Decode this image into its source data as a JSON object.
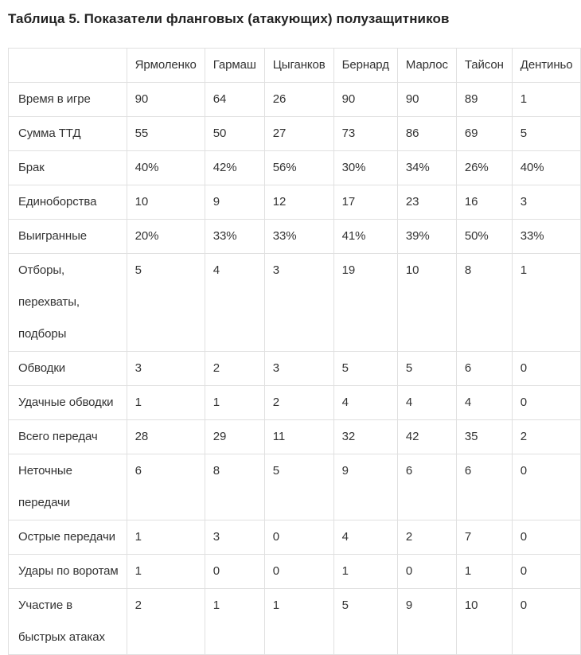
{
  "colors": {
    "text": "#333333",
    "border": "#e0e0e0",
    "title_text": "#222222",
    "background": "#ffffff"
  },
  "chart_data": {
    "type": "table",
    "title": "Таблица 5. Показатели фланговых (атакующих) полузащитников",
    "columns": [
      "",
      "Ярмоленко",
      "Гармаш",
      "Цыганков",
      "Бернард",
      "Марлос",
      "Тайсон",
      "Дентиньо"
    ],
    "rows": [
      {
        "label": "Время в игре",
        "values": [
          "90",
          "64",
          "26",
          "90",
          "90",
          "89",
          "1"
        ]
      },
      {
        "label": "Сумма ТТД",
        "values": [
          "55",
          "50",
          "27",
          "73",
          "86",
          "69",
          "5"
        ]
      },
      {
        "label": "Брак",
        "values": [
          "40%",
          "42%",
          "56%",
          "30%",
          "34%",
          "26%",
          "40%"
        ]
      },
      {
        "label": "Единоборства",
        "values": [
          "10",
          "9",
          "12",
          "17",
          "23",
          "16",
          "3"
        ]
      },
      {
        "label": "Выигранные",
        "values": [
          "20%",
          "33%",
          "33%",
          "41%",
          "39%",
          "50%",
          "33%"
        ]
      },
      {
        "label": "Отборы,\nперехваты,\nподборы",
        "values": [
          "5",
          "4",
          "3",
          "19",
          "10",
          "8",
          "1"
        ]
      },
      {
        "label": "Обводки",
        "values": [
          "3",
          "2",
          "3",
          "5",
          "5",
          "6",
          "0"
        ]
      },
      {
        "label": "Удачные обводки",
        "values": [
          "1",
          "1",
          "2",
          "4",
          "4",
          "4",
          "0"
        ]
      },
      {
        "label": "Всего передач",
        "values": [
          "28",
          "29",
          "11",
          "32",
          "42",
          "35",
          "2"
        ]
      },
      {
        "label": "Неточные\nпередачи",
        "values": [
          "6",
          "8",
          "5",
          "9",
          "6",
          "6",
          "0"
        ]
      },
      {
        "label": "Острые передачи",
        "values": [
          "1",
          "3",
          "0",
          "4",
          "2",
          "7",
          "0"
        ]
      },
      {
        "label": "Удары по воротам",
        "values": [
          "1",
          "0",
          "0",
          "1",
          "0",
          "1",
          "0"
        ]
      },
      {
        "label": "Участие в\nбыстрых атаках",
        "values": [
          "2",
          "1",
          "1",
          "5",
          "9",
          "10",
          "0"
        ]
      }
    ]
  }
}
